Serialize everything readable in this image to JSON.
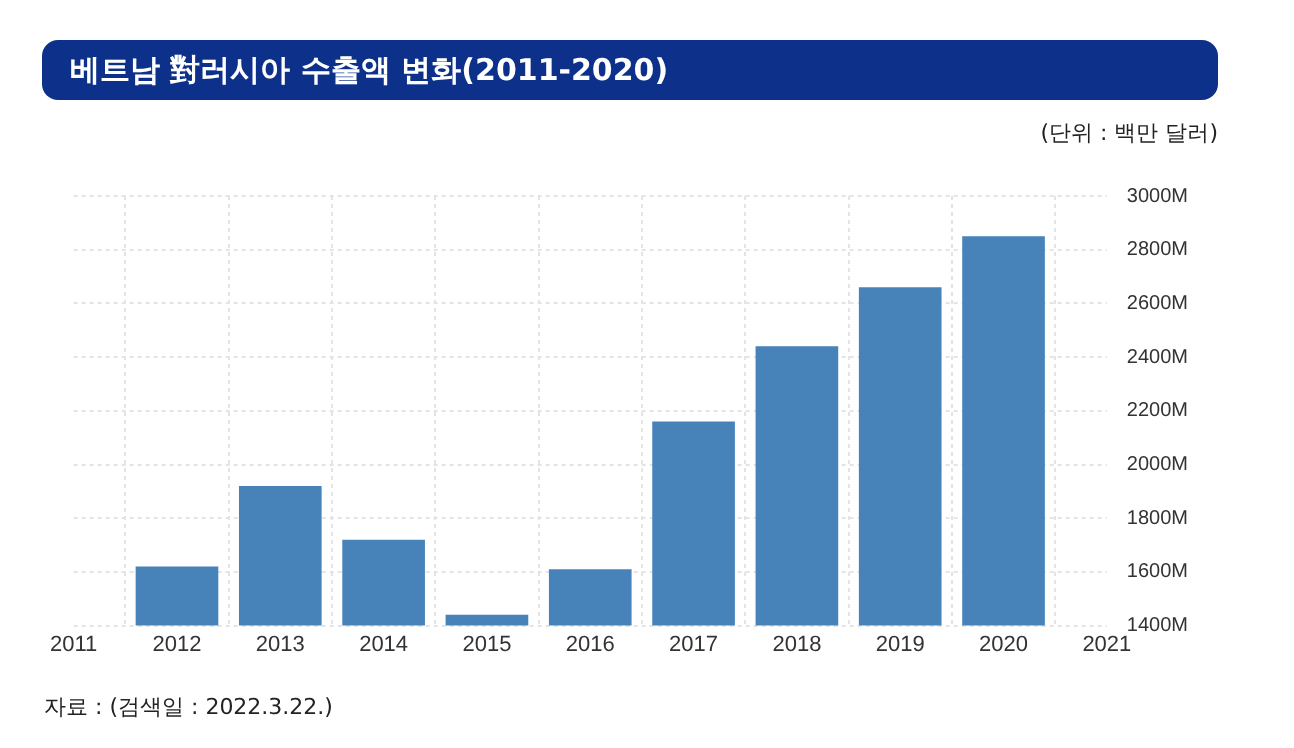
{
  "chart_data": {
    "type": "bar",
    "title": "베트남 對러시아 수출액 변화(2011-2020)",
    "ylabel": "(단위 : 백만 달러)",
    "x": [
      2012,
      2013,
      2014,
      2015,
      2016,
      2017,
      2018,
      2019,
      2020
    ],
    "values": [
      1620,
      1920,
      1720,
      1440,
      1610,
      2160,
      2440,
      2660,
      2850
    ],
    "color": "#4783b9",
    "xlim": [
      2011,
      2021
    ],
    "xticks": [
      2011,
      2012,
      2013,
      2014,
      2015,
      2016,
      2017,
      2018,
      2019,
      2020,
      2021
    ],
    "ylim": [
      1400,
      3000
    ],
    "yticks": [
      {
        "value": 1400,
        "label": "1400M"
      },
      {
        "value": 1600,
        "label": "1600M"
      },
      {
        "value": 1800,
        "label": "1800M"
      },
      {
        "value": 2000,
        "label": "2000M"
      },
      {
        "value": 2200,
        "label": "2200M"
      },
      {
        "value": 2400,
        "label": "2400M"
      },
      {
        "value": 2600,
        "label": "2600M"
      },
      {
        "value": 2800,
        "label": "2800M"
      },
      {
        "value": 3000,
        "label": "3000M"
      }
    ],
    "grid": true,
    "legend": false,
    "annotations": [
      "자료 : (검색일 : 2022.3.22.)"
    ]
  }
}
